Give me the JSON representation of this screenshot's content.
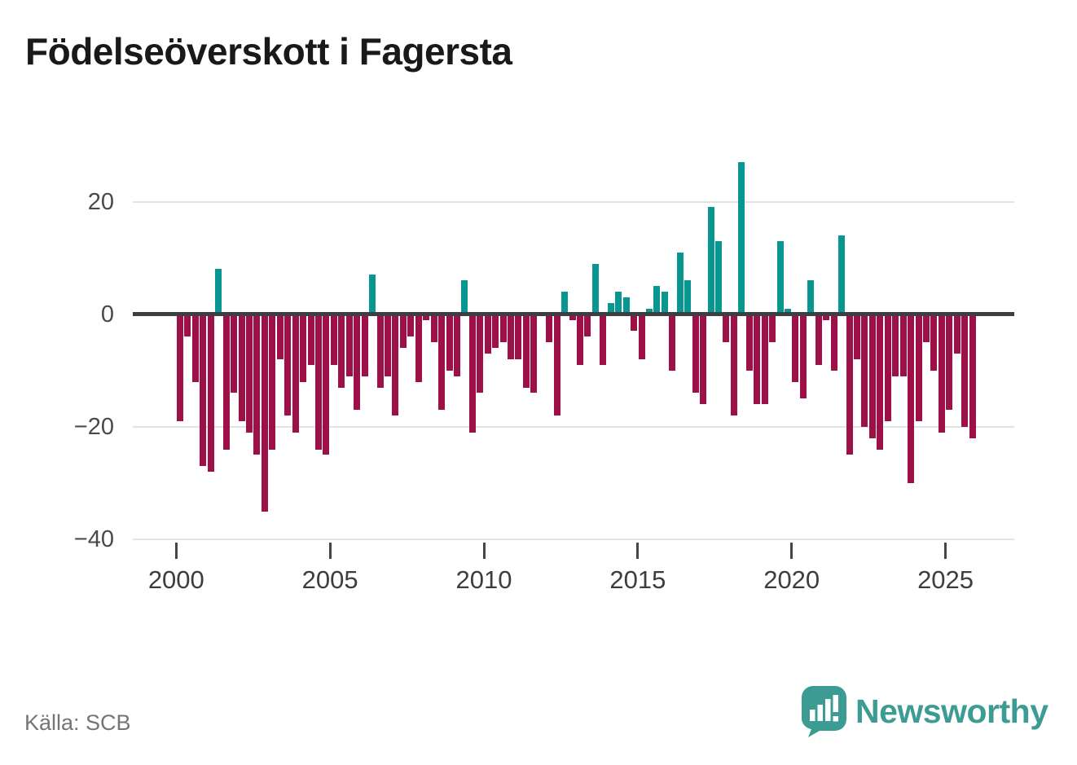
{
  "title": "Födelseöverskott i Fagersta",
  "footer": {
    "source": "Källa: SCB",
    "brand": "Newsworthy"
  },
  "colors": {
    "positive": "#089690",
    "negative": "#9e1048",
    "axis_line": "#3d3d42",
    "gridline": "#e3e3e3",
    "brand_teal": "#3c9c93",
    "title_text": "#191919",
    "tick_text": "#3d3d3d",
    "source_text": "#757575"
  },
  "axes": {
    "y_tick_labels": [
      "20",
      "0",
      "−20",
      "−40"
    ],
    "y_tick_values": [
      20,
      0,
      -20,
      -40
    ],
    "x_tick_labels": [
      "2000",
      "2005",
      "2010",
      "2015",
      "2020",
      "2025"
    ],
    "x_tick_years": [
      2000,
      2005,
      2010,
      2015,
      2020,
      2025
    ]
  },
  "chart_data": {
    "type": "bar",
    "title": "Födelseöverskott i Fagersta",
    "frequency": "quarterly",
    "x_start": "2000 Q1",
    "x_end": "2025 Q4",
    "ylim": [
      -40,
      28
    ],
    "grid": "horizontal",
    "legend": "none",
    "data_by_year": [
      {
        "year": 2000,
        "values": [
          -19,
          -4,
          -12,
          -27
        ]
      },
      {
        "year": 2001,
        "values": [
          -28,
          8,
          -24,
          -14
        ]
      },
      {
        "year": 2002,
        "values": [
          -19,
          -21,
          -25,
          -35
        ]
      },
      {
        "year": 2003,
        "values": [
          -24,
          -8,
          -18,
          -21
        ]
      },
      {
        "year": 2004,
        "values": [
          -12,
          -9,
          -24,
          -25
        ]
      },
      {
        "year": 2005,
        "values": [
          -9,
          -13,
          -11,
          -17
        ]
      },
      {
        "year": 2006,
        "values": [
          -11,
          7,
          -13,
          -11
        ]
      },
      {
        "year": 2007,
        "values": [
          -18,
          -6,
          -4,
          -12
        ]
      },
      {
        "year": 2008,
        "values": [
          -1,
          -5,
          -17,
          -10
        ]
      },
      {
        "year": 2009,
        "values": [
          -11,
          6,
          -21,
          -14
        ]
      },
      {
        "year": 2010,
        "values": [
          -7,
          -6,
          -5,
          -8
        ]
      },
      {
        "year": 2011,
        "values": [
          -8,
          -13,
          -14,
          0
        ]
      },
      {
        "year": 2012,
        "values": [
          -5,
          -18,
          4,
          -1
        ]
      },
      {
        "year": 2013,
        "values": [
          -9,
          -4,
          9,
          -9
        ]
      },
      {
        "year": 2014,
        "values": [
          2,
          4,
          3,
          -3
        ]
      },
      {
        "year": 2015,
        "values": [
          -8,
          1,
          5,
          4
        ]
      },
      {
        "year": 2016,
        "values": [
          -10,
          11,
          6,
          -14
        ]
      },
      {
        "year": 2017,
        "values": [
          -16,
          19,
          13,
          -5
        ]
      },
      {
        "year": 2018,
        "values": [
          -18,
          27,
          -10,
          -16
        ]
      },
      {
        "year": 2019,
        "values": [
          -16,
          -5,
          13,
          1
        ]
      },
      {
        "year": 2020,
        "values": [
          -12,
          -15,
          6,
          -9
        ]
      },
      {
        "year": 2021,
        "values": [
          -1,
          -10,
          14,
          -25
        ]
      },
      {
        "year": 2022,
        "values": [
          -8,
          -20,
          -22,
          -24
        ]
      },
      {
        "year": 2023,
        "values": [
          -19,
          -11,
          -11,
          -30
        ]
      },
      {
        "year": 2024,
        "values": [
          -19,
          -5,
          -10,
          -21
        ]
      },
      {
        "year": 2025,
        "values": [
          -17,
          -7,
          -20,
          -22
        ]
      }
    ]
  }
}
